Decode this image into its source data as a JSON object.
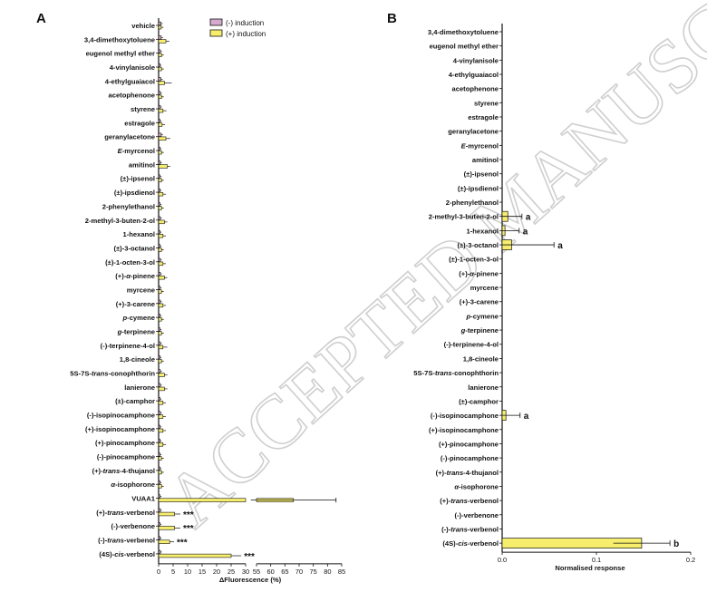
{
  "watermark": "ACCEPTED MANUSCRIPT",
  "colors": {
    "neg": "#d6a9cf",
    "pos": "#f7ee6e",
    "edge": "#111111"
  },
  "chart_data": [
    {
      "panel": "A",
      "type": "bar",
      "orientation": "horizontal",
      "xlabel": "ΔFluorescence (%)",
      "legend": {
        "position": "top-right",
        "entries": [
          "(-) induction",
          "(+) induction"
        ]
      },
      "broken_axis": {
        "segment1": [
          0,
          30
        ],
        "segment2": [
          55,
          85
        ]
      },
      "xticks1": [
        0,
        5,
        10,
        15,
        20,
        25,
        30
      ],
      "xticks2": [
        55,
        60,
        65,
        70,
        75,
        80,
        85
      ],
      "categories": [
        "vehicle",
        "3,4-dimethoxytoluene",
        "eugenol methyl ether",
        "4-vinylanisole",
        "4-ethylguaiacol",
        "acetophenone",
        "styrene",
        "estragole",
        "geranylacetone",
        "E-myrcenol",
        "amitinol",
        "(±)-ipsenol",
        "(±)-ipsdienol",
        "2-phenylethanol",
        "2-methyl-3-buten-2-ol",
        "1-hexanol",
        "(±)-3-octanol",
        "(±)-1-octen-3-ol",
        "(+)-α-pinene",
        "myrcene",
        "(+)-3-carene",
        "p-cymene",
        "g-terpinene",
        "(-)-terpinene-4-ol",
        "1,8-cineole",
        "5S-7S-trans-conophthorin",
        "lanierone",
        "(±)-camphor",
        "(-)-isopinocamphone",
        "(+)-isopinocamphone",
        "(+)-pinocamphone",
        "(-)-pinocamphone",
        "(+)-trans-4-thujanol",
        "α-isophorone",
        "VUAA1",
        "(+)-trans-verbenol",
        "(-)-verbenone",
        "(-)-trans-verbenol",
        "(4S)-cis-verbenol"
      ],
      "series": [
        {
          "name": "(-) induction",
          "values": [
            0.8,
            0.9,
            0.6,
            0.5,
            0.8,
            0.6,
            0.6,
            0.5,
            0.9,
            0.5,
            0.6,
            0.5,
            0.5,
            0.5,
            0.6,
            0.5,
            0.5,
            0.6,
            0.6,
            0.5,
            0.6,
            0.5,
            0.5,
            0.6,
            0.5,
            0.6,
            0.6,
            0.5,
            0.6,
            0.5,
            0.5,
            0.5,
            0.5,
            0.5,
            0.5,
            0.6,
            0.5,
            0.5,
            0.6
          ]
        },
        {
          "name": "(+) induction",
          "values": [
            0.9,
            2.5,
            1.0,
            1.0,
            2.0,
            1.0,
            1.5,
            1.2,
            2.5,
            1.0,
            3.0,
            1.0,
            1.5,
            1.0,
            2.0,
            1.5,
            1.0,
            1.5,
            2.0,
            1.0,
            1.5,
            1.0,
            1.0,
            1.5,
            1.0,
            2.0,
            2.0,
            1.5,
            1.5,
            1.5,
            1.5,
            1.0,
            1.0,
            1.0,
            68,
            5.5,
            5.5,
            3.8,
            25
          ]
        },
        {
          "name": "(-) induction error",
          "values": [
            0.6,
            0.6,
            0.5,
            0.5,
            0.6,
            0.5,
            0.5,
            0.5,
            0.6,
            0.5,
            0.5,
            0.5,
            0.5,
            0.5,
            0.5,
            0.5,
            0.5,
            0.5,
            0.5,
            0.5,
            0.5,
            0.5,
            0.5,
            0.5,
            0.5,
            0.5,
            0.5,
            0.5,
            0.5,
            0.5,
            0.5,
            0.5,
            0.5,
            0.5,
            0.5,
            0.5,
            0.5,
            0.5,
            0.5
          ]
        },
        {
          "name": "(+) induction error",
          "values": [
            0.8,
            1.2,
            0.8,
            0.8,
            2.5,
            0.8,
            1.2,
            1.0,
            1.5,
            0.8,
            1.0,
            0.8,
            1.0,
            0.8,
            1.0,
            1.0,
            0.8,
            1.0,
            1.0,
            0.8,
            1.0,
            0.8,
            0.8,
            1.5,
            0.8,
            1.0,
            1.0,
            1.0,
            1.0,
            1.0,
            1.0,
            0.8,
            0.8,
            0.8,
            15,
            2.0,
            2.0,
            1.5,
            3.5
          ]
        }
      ],
      "annotations": [
        {
          "category": "(+)-trans-verbenol",
          "text": "***"
        },
        {
          "category": "(-)-verbenone",
          "text": "***"
        },
        {
          "category": "(-)-trans-verbenol",
          "text": "***"
        },
        {
          "category": "(4S)-cis-verbenol",
          "text": "***"
        }
      ]
    },
    {
      "panel": "B",
      "type": "bar",
      "orientation": "horizontal",
      "xlabel": "Normalised response",
      "xlim": [
        0,
        0.2
      ],
      "xticks": [
        "0.0",
        "0.1",
        "0.2"
      ],
      "categories": [
        "3,4-dimethoxytoluene",
        "eugenol methyl ether",
        "4-vinylanisole",
        "4-ethylguaiacol",
        "acetophenone",
        "styrene",
        "estragole",
        "geranylacetone",
        "E-myrcenol",
        "amitinol",
        "(±)-ipsenol",
        "(±)-ipsdienol",
        "2-phenylethanol",
        "2-methyl-3-buten-2-ol",
        "1-hexanol",
        "(±)-3-octanol",
        "(±)-1-octen-3-ol",
        "(+)-α-pinene",
        "myrcene",
        "(+)-3-carene",
        "p-cymene",
        "g-terpinene",
        "(-)-terpinene-4-ol",
        "1,8-cineole",
        "5S-7S-trans-conophthorin",
        "lanierone",
        "(±)-camphor",
        "(-)-isopinocamphone",
        "(+)-isopinocamphone",
        "(+)-pinocamphone",
        "(-)-pinocamphone",
        "(+)-trans-4-thujanol",
        "α-isophorone",
        "(+)-trans-verbenol",
        "(-)-verbenone",
        "(-)-trans-verbenol",
        "(4S)-cis-verbenol"
      ],
      "values": [
        0,
        0,
        0,
        0,
        0,
        0,
        0,
        0,
        0,
        0,
        0,
        0,
        0,
        0.006,
        0.003,
        0.01,
        0,
        0,
        0,
        0,
        0,
        0,
        0,
        0,
        0,
        0,
        0,
        0.004,
        0,
        0,
        0,
        0,
        0,
        0,
        0,
        0,
        0.148
      ],
      "errors": [
        0,
        0,
        0,
        0,
        0,
        0,
        0,
        0,
        0,
        0,
        0,
        0,
        0,
        0.015,
        0.015,
        0.045,
        0,
        0,
        0,
        0,
        0,
        0,
        0,
        0,
        0,
        0,
        0,
        0.015,
        0,
        0,
        0,
        0,
        0,
        0,
        0,
        0,
        0.03
      ],
      "annotations": [
        {
          "category": "2-methyl-3-buten-2-ol",
          "text": "a"
        },
        {
          "category": "1-hexanol",
          "text": "a"
        },
        {
          "category": "(±)-3-octanol",
          "text": "a"
        },
        {
          "category": "(-)-isopinocamphone",
          "text": "a"
        },
        {
          "category": "(4S)-cis-verbenol",
          "text": "b"
        }
      ]
    }
  ]
}
